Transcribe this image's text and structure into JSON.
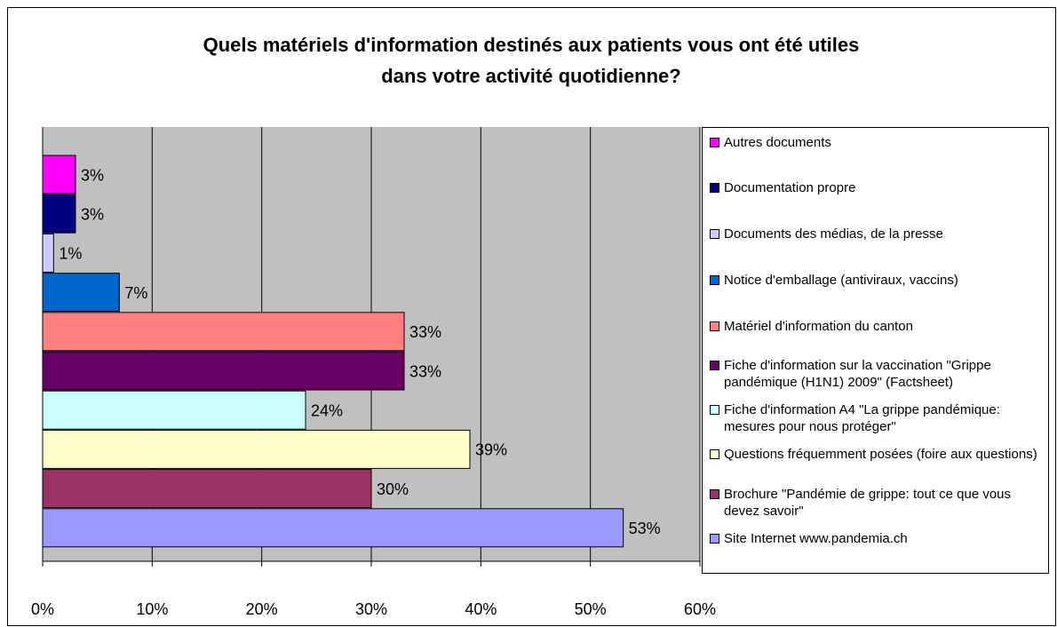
{
  "chart_data": {
    "type": "bar",
    "orientation": "horizontal",
    "title": [
      "Quels matériels d'information destinés aux patients vous ont été utiles",
      "dans votre activité quotidienne?"
    ],
    "categories": [
      "Autres documents",
      "Documentation propre",
      "Documents des médias, de la presse",
      "Notice d'emballage (antiviraux, vaccins)",
      "Matériel d'information du canton",
      "Fiche d'information sur la vaccination \"Grippe pandémique (H1N1) 2009\" (Factsheet)",
      "Fiche d'information A4 \"La grippe pandémique: mesures pour nous protéger\"",
      "Questions fréquemment posées (foire aux questions)",
      "Brochure \"Pandémie de grippe: tout ce que vous devez savoir\"",
      "Site Internet www.pandemia.ch"
    ],
    "values": [
      3,
      3,
      1,
      7,
      33,
      33,
      24,
      39,
      30,
      53
    ],
    "value_labels": [
      "3%",
      "3%",
      "1%",
      "7%",
      "33%",
      "33%",
      "24%",
      "39%",
      "30%",
      "53%"
    ],
    "colors": [
      "#ff00ff",
      "#000080",
      "#ccccff",
      "#0066cc",
      "#ff8080",
      "#660066",
      "#ccffff",
      "#ffffcc",
      "#993366",
      "#9999ff"
    ],
    "xlim": [
      0,
      60
    ],
    "xticks": [
      {
        "value": 0,
        "label": "0%"
      },
      {
        "value": 10,
        "label": "10%"
      },
      {
        "value": 20,
        "label": "20%"
      },
      {
        "value": 30,
        "label": "30%"
      },
      {
        "value": 40,
        "label": "40%"
      },
      {
        "value": 50,
        "label": "50%"
      },
      {
        "value": 60,
        "label": "60%"
      }
    ],
    "grid": true,
    "legend": "right"
  }
}
